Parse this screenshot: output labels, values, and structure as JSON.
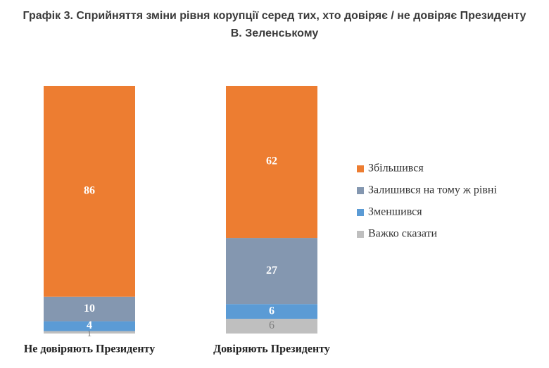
{
  "chart_data": {
    "type": "stacked-bar",
    "title": "Графік 3. Сприйняття зміни рівня корупції серед тих, хто довіряє / не довіряє Президенту В. Зеленському",
    "categories": [
      "Не довіряють Президенту",
      "Довіряють Президенту"
    ],
    "series": [
      {
        "name": "Збільшився",
        "color": "#ed7d31",
        "values": [
          86,
          62
        ]
      },
      {
        "name": "Залишився на тому ж рівні",
        "color": "#8497b0",
        "values": [
          10,
          27
        ]
      },
      {
        "name": "Зменшився",
        "color": "#5b9bd5",
        "values": [
          4,
          6
        ]
      },
      {
        "name": "Важко сказати",
        "color": "#bfbfbf",
        "values": [
          1,
          6
        ]
      }
    ],
    "legend": "right"
  }
}
